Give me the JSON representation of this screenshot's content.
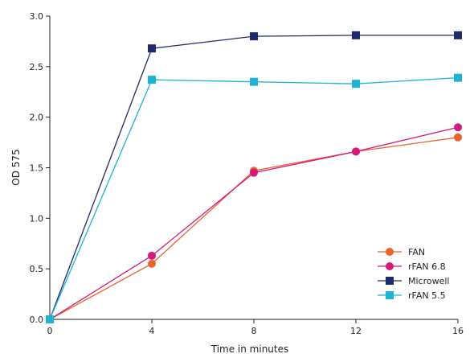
{
  "chart_data": {
    "type": "line",
    "title": "",
    "xlabel": "Time in minutes",
    "ylabel": "OD 575",
    "x": [
      0,
      4,
      8,
      12,
      16
    ],
    "xlim": [
      0,
      16
    ],
    "ylim": [
      0,
      3.0
    ],
    "x_ticks": [
      "0",
      "4",
      "8",
      "12",
      "16"
    ],
    "y_ticks": [
      "0.0",
      "0.5",
      "1.0",
      "1.5",
      "2.0",
      "2.5",
      "3.0"
    ],
    "grid": false,
    "legend_position": "bottom-right",
    "series": [
      {
        "name": "FAN",
        "marker": "circle",
        "color": "#e8642a",
        "values": [
          0.0,
          0.55,
          1.47,
          1.66,
          1.8
        ]
      },
      {
        "name": "rFAN 6.8",
        "marker": "circle",
        "color": "#d6187c",
        "values": [
          0.0,
          0.63,
          1.45,
          1.66,
          1.9
        ]
      },
      {
        "name": "Microwell",
        "marker": "square",
        "color": "#1f2a6b",
        "values": [
          0.0,
          2.68,
          2.8,
          2.81,
          2.81
        ]
      },
      {
        "name": "rFAN 5.5",
        "marker": "square",
        "color": "#1fb2d4",
        "values": [
          0.0,
          2.37,
          2.35,
          2.33,
          2.39
        ]
      }
    ]
  }
}
